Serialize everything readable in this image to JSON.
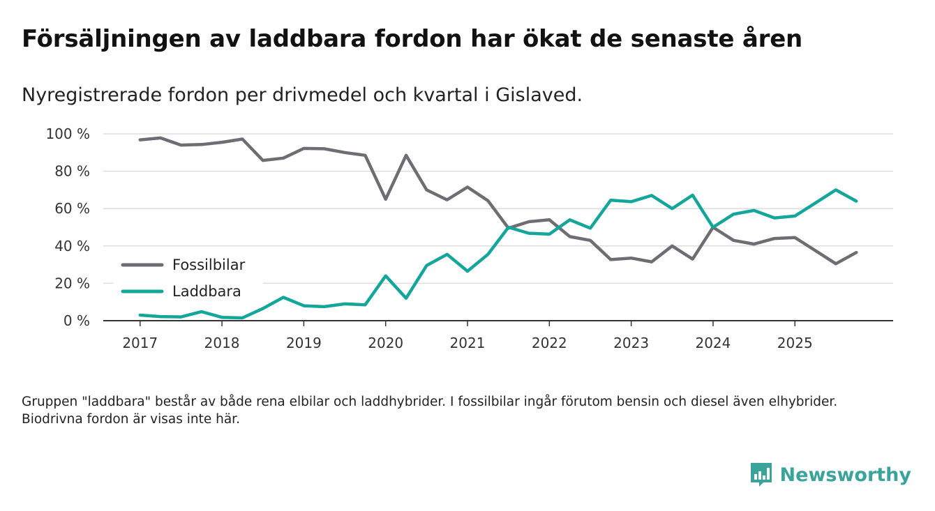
{
  "title": "Försäljningen av laddbara fordon har ökat de senaste åren",
  "subtitle": "Nyregistrerade fordon per drivmedel och kvartal i Gislaved.",
  "note": "Gruppen \"laddbara\" består av både rena elbilar och laddhybrider. I fossilbilar ingår förutom bensin och diesel även elhybrider. Biodrivna fordon är visas inte här.",
  "brand": {
    "name": "Newsworthy",
    "color": "#3aa39a"
  },
  "chart_data": {
    "type": "line",
    "title": "Försäljningen av laddbara fordon har ökat de senaste åren",
    "xlabel": "",
    "ylabel": "",
    "ylim": [
      0,
      100
    ],
    "xlim": [
      2016.55,
      2026.2
    ],
    "grid": true,
    "legend": "left",
    "y_ticks": [
      0,
      20,
      40,
      60,
      80,
      100
    ],
    "y_tick_labels": [
      "0 %",
      "20 %",
      "40 %",
      "60 %",
      "80 %",
      "100 %"
    ],
    "x_ticks": [
      "2017",
      "2018",
      "2019",
      "2020",
      "2021",
      "2022",
      "2023",
      "2024",
      "2025"
    ],
    "x": [
      2017.0,
      2017.25,
      2017.5,
      2017.75,
      2018.0,
      2018.25,
      2018.5,
      2018.75,
      2019.0,
      2019.25,
      2019.5,
      2019.75,
      2020.0,
      2020.25,
      2020.5,
      2020.75,
      2021.0,
      2021.25,
      2021.5,
      2021.75,
      2022.0,
      2022.25,
      2022.5,
      2022.75,
      2023.0,
      2023.25,
      2023.5,
      2023.75,
      2024.0,
      2024.25,
      2024.5,
      2024.75,
      2025.0,
      2025.25,
      2025.5,
      2025.75
    ],
    "series": [
      {
        "name": "Fossilbilar",
        "color": "#6d6d73",
        "values": [
          96.8,
          97.8,
          94.0,
          94.3,
          95.5,
          97.2,
          85.8,
          87.0,
          92.2,
          92.0,
          90.0,
          88.5,
          65.0,
          88.5,
          70.0,
          64.7,
          71.5,
          64.2,
          49.5,
          53.0,
          54.0,
          45.0,
          43.0,
          32.7,
          33.5,
          31.5,
          40.0,
          33.0,
          50.0,
          43.0,
          41.0,
          44.0,
          44.5,
          37.5,
          30.5,
          36.5
        ]
      },
      {
        "name": "Laddbara",
        "color": "#14a69a",
        "values": [
          3.0,
          2.2,
          2.0,
          4.8,
          1.8,
          1.5,
          6.5,
          12.5,
          8.0,
          7.5,
          9.0,
          8.5,
          24.0,
          12.0,
          29.5,
          35.5,
          26.5,
          35.5,
          50.0,
          46.8,
          46.3,
          54.0,
          49.5,
          64.5,
          63.7,
          67.0,
          60.0,
          67.2,
          50.0,
          57.0,
          59.0,
          55.0,
          56.0,
          63.0,
          70.0,
          64.0
        ]
      }
    ]
  }
}
